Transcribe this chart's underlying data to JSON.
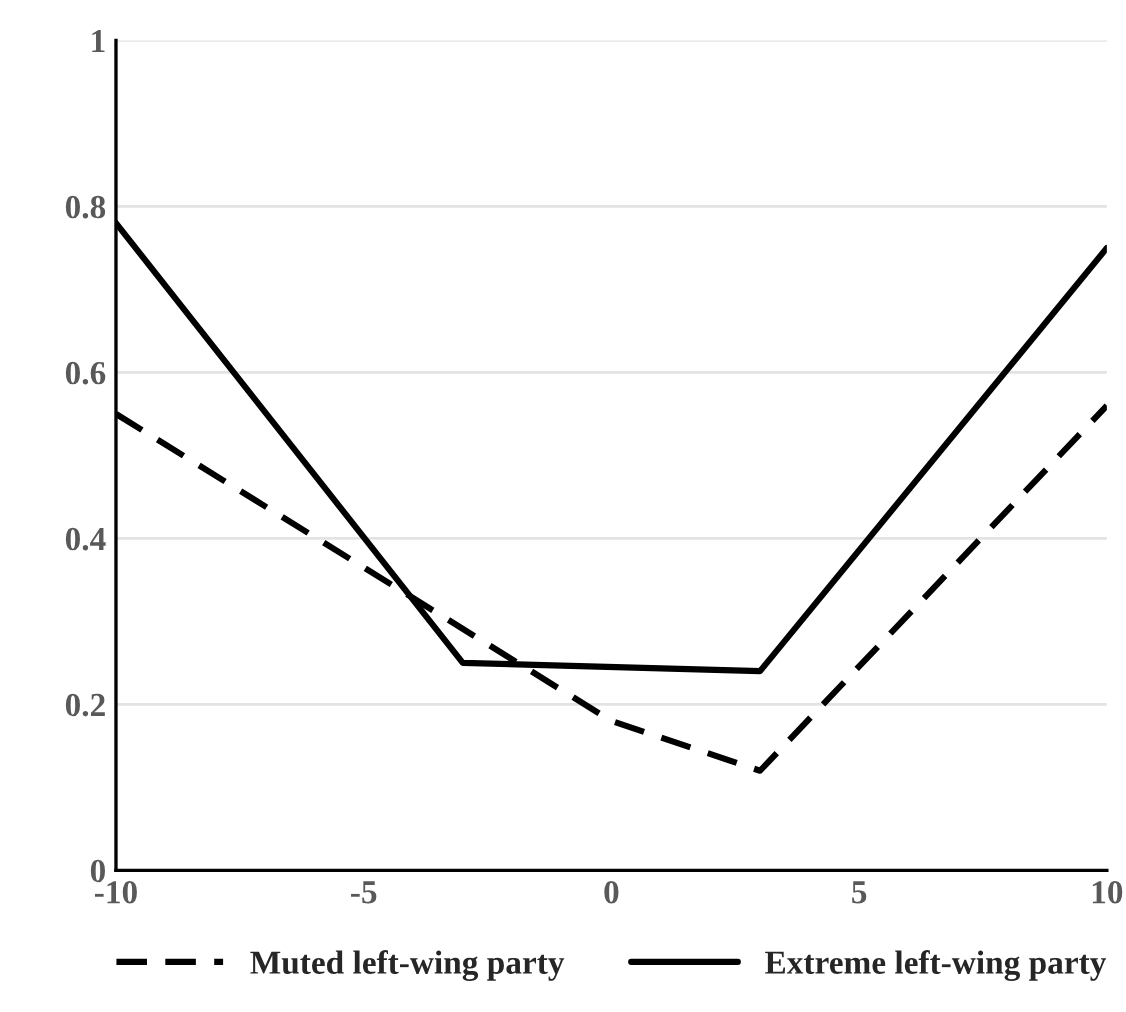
{
  "chart_data": {
    "type": "line",
    "series": [
      {
        "name": "Muted left-wing party",
        "color": "#000000",
        "line_style": "dashed",
        "x": [
          -10,
          0,
          3,
          10
        ],
        "values": [
          0.55,
          0.18,
          0.12,
          0.56
        ]
      },
      {
        "name": "Extreme left-wing party",
        "color": "#000000",
        "line_style": "solid",
        "x": [
          -10,
          -3,
          3,
          10
        ],
        "values": [
          0.78,
          0.25,
          0.24,
          0.75
        ]
      }
    ],
    "xlim": [
      -10,
      10
    ],
    "xticks": [
      -10,
      -5,
      0,
      5,
      10
    ],
    "ylim": [
      0,
      1
    ],
    "yticks": [
      0,
      {
        "value": 0.2,
        "label": "0.2"
      },
      {
        "value": 0.4,
        "label": "0.4"
      },
      {
        "value": 0.6,
        "label": "0.6"
      },
      {
        "value": 0.8,
        "label": "0.8"
      },
      1
    ],
    "grid": "y",
    "legend": "bottom",
    "marker": "none"
  }
}
